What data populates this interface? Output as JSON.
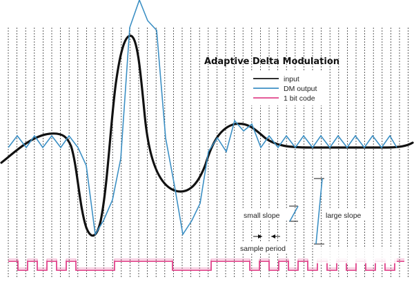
{
  "title": "Adaptive Delta Modulation",
  "legend": [
    {
      "label": "input",
      "color": "#111111"
    },
    {
      "label": "DM output",
      "color": "#3b8fc4"
    },
    {
      "label": "1 bit code",
      "color": "#e0438a"
    }
  ],
  "annotations": {
    "small_slope": "small slope",
    "large_slope": "large slope",
    "sample_period": "sample period"
  },
  "colors": {
    "input": "#111111",
    "dm_output": "#3b8fc4",
    "bit_code": "#e0438a",
    "grid": "#333333"
  },
  "bits": [
    1,
    0,
    1,
    0,
    1,
    0,
    1,
    0,
    0,
    0,
    0,
    1,
    1,
    1,
    1,
    1,
    1,
    0,
    0,
    0,
    0,
    1,
    1,
    1,
    1,
    0,
    1,
    0,
    1,
    0,
    1,
    0,
    1,
    0,
    1,
    0,
    1,
    0,
    1,
    0,
    1
  ]
}
